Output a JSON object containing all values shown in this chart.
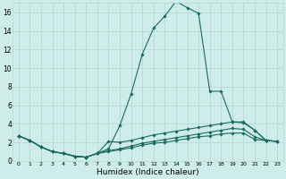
{
  "xlabel": "Humidex (Indice chaleur)",
  "background_color": "#ceecea",
  "grid_color": "#b8d8d4",
  "line_color": "#1a6b5e",
  "xlim": [
    -0.5,
    23.5
  ],
  "ylim": [
    0,
    17
  ],
  "xticks": [
    0,
    1,
    2,
    3,
    4,
    5,
    6,
    7,
    8,
    9,
    10,
    11,
    12,
    13,
    14,
    15,
    16,
    17,
    18,
    19,
    20,
    21,
    22,
    23
  ],
  "yticks": [
    0,
    2,
    4,
    6,
    8,
    10,
    12,
    14,
    16
  ],
  "lines": [
    {
      "x": [
        0,
        1,
        2,
        3,
        4,
        5,
        6,
        7,
        8,
        9,
        10,
        11,
        12,
        13,
        14,
        15,
        16,
        17,
        18,
        19,
        20,
        21,
        22,
        23
      ],
      "y": [
        2.7,
        2.2,
        1.5,
        1.0,
        0.8,
        0.5,
        0.4,
        0.8,
        1.3,
        3.8,
        7.2,
        11.5,
        14.3,
        15.6,
        17.2,
        16.5,
        15.9,
        7.5,
        7.5,
        4.2,
        4.1,
        3.3,
        2.2,
        2.1
      ]
    },
    {
      "x": [
        0,
        1,
        2,
        3,
        4,
        5,
        6,
        7,
        8,
        9,
        10,
        11,
        12,
        13,
        14,
        15,
        16,
        17,
        18,
        19,
        20,
        21,
        22,
        23
      ],
      "y": [
        2.7,
        2.2,
        1.5,
        1.0,
        0.8,
        0.5,
        0.4,
        0.8,
        2.1,
        2.0,
        2.2,
        2.5,
        2.8,
        3.0,
        3.2,
        3.4,
        3.6,
        3.8,
        4.0,
        4.2,
        4.2,
        3.3,
        2.2,
        2.1
      ]
    },
    {
      "x": [
        0,
        1,
        2,
        3,
        4,
        5,
        6,
        7,
        8,
        9,
        10,
        11,
        12,
        13,
        14,
        15,
        16,
        17,
        18,
        19,
        20,
        21,
        22,
        23
      ],
      "y": [
        2.7,
        2.2,
        1.5,
        1.0,
        0.8,
        0.5,
        0.4,
        0.8,
        1.1,
        1.3,
        1.6,
        1.9,
        2.1,
        2.3,
        2.5,
        2.7,
        2.9,
        3.1,
        3.3,
        3.5,
        3.4,
        2.6,
        2.2,
        2.1
      ]
    },
    {
      "x": [
        0,
        1,
        2,
        3,
        4,
        5,
        6,
        7,
        8,
        9,
        10,
        11,
        12,
        13,
        14,
        15,
        16,
        17,
        18,
        19,
        20,
        21,
        22,
        23
      ],
      "y": [
        2.7,
        2.2,
        1.5,
        1.0,
        0.8,
        0.5,
        0.4,
        0.8,
        1.0,
        1.2,
        1.4,
        1.7,
        1.9,
        2.0,
        2.2,
        2.4,
        2.6,
        2.7,
        2.9,
        3.0,
        3.0,
        2.3,
        2.2,
        2.1
      ]
    }
  ]
}
